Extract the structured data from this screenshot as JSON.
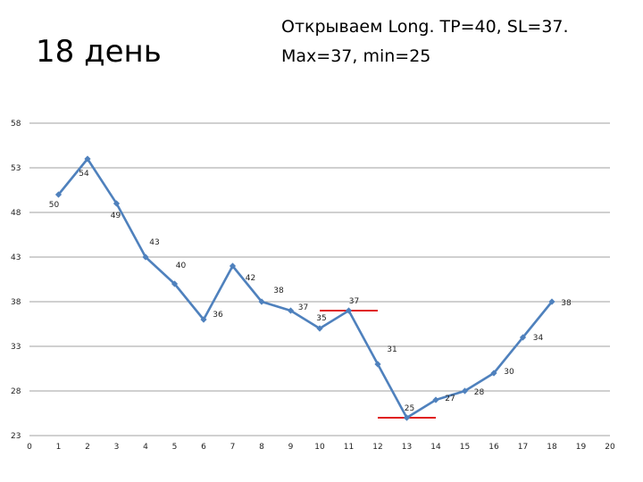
{
  "title": "18 день",
  "subtitle_line1": "Открываем Long. TP=40, SL=37.",
  "subtitle_line2": "Max=37, min=25",
  "colors": {
    "line": "#4f81bd",
    "marker": "#4f81bd",
    "grid": "#a0a0a0",
    "level": "#e02020"
  },
  "chart_data": {
    "type": "line",
    "x": [
      1,
      2,
      3,
      4,
      5,
      6,
      7,
      8,
      9,
      10,
      11,
      12,
      13,
      14,
      15,
      16,
      17,
      18
    ],
    "values": [
      50,
      54,
      49,
      43,
      40,
      36,
      42,
      38,
      37,
      35,
      37,
      31,
      25,
      27,
      28,
      30,
      34,
      38
    ],
    "labels": [
      "50",
      "54",
      "49",
      "43",
      "40",
      "36",
      "42",
      "38",
      "37",
      "35",
      "37",
      "31",
      "25",
      "27",
      "28",
      "30",
      "34",
      "38"
    ],
    "xlim": [
      0,
      20
    ],
    "ylim": [
      23,
      58
    ],
    "xticks": [
      "0",
      "1",
      "2",
      "3",
      "4",
      "5",
      "6",
      "7",
      "8",
      "9",
      "10",
      "11",
      "12",
      "13",
      "14",
      "15",
      "16",
      "17",
      "18",
      "19",
      "20"
    ],
    "yticks": [
      "23",
      "28",
      "33",
      "38",
      "43",
      "48",
      "53",
      "58"
    ],
    "grid": true,
    "levels": [
      {
        "name": "max",
        "value": 37,
        "x_from": 10,
        "x_to": 12
      },
      {
        "name": "min",
        "value": 25,
        "x_from": 12,
        "x_to": 14
      }
    ]
  }
}
